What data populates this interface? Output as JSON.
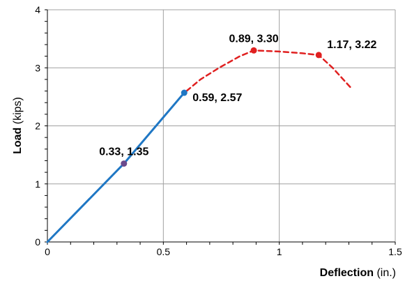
{
  "chart_data": {
    "type": "line",
    "xlabel": {
      "bold": "Deflection",
      "unit": " (in.)"
    },
    "ylabel": {
      "bold": "Load",
      "unit": " (kips)"
    },
    "xlim": [
      0,
      1.5
    ],
    "ylim": [
      0,
      4
    ],
    "x_ticks": [
      "0",
      "0.5",
      "1",
      "1.5"
    ],
    "y_ticks": [
      "0",
      "1",
      "2",
      "3",
      "4"
    ],
    "grid": true,
    "series": [
      {
        "style": "solid",
        "color": "#1f77c4",
        "points": [
          [
            0,
            0
          ],
          [
            0.33,
            1.35
          ],
          [
            0.59,
            2.57
          ]
        ]
      },
      {
        "style": "dashed",
        "color": "#e02020",
        "points": [
          [
            0.6,
            2.6
          ],
          [
            0.66,
            2.8
          ],
          [
            0.74,
            3.0
          ],
          [
            0.83,
            3.2
          ],
          [
            0.89,
            3.3
          ],
          [
            1.0,
            3.28
          ],
          [
            1.1,
            3.25
          ],
          [
            1.17,
            3.22
          ],
          [
            1.23,
            3.0
          ],
          [
            1.31,
            2.65
          ]
        ]
      }
    ],
    "markers": [
      {
        "x": 0.33,
        "y": 1.35,
        "color": "#6b4a8c"
      },
      {
        "x": 0.59,
        "y": 2.57,
        "color": "#1f77c4"
      },
      {
        "x": 0.89,
        "y": 3.3,
        "color": "#e02020"
      },
      {
        "x": 1.17,
        "y": 3.22,
        "color": "#e02020"
      }
    ],
    "annotations": [
      {
        "text": "0.33, 1.35",
        "x": 0.33,
        "y": 1.35,
        "anchor": "above"
      },
      {
        "text": "0.59, 2.57",
        "x": 0.59,
        "y": 2.57,
        "anchor": "right"
      },
      {
        "text": "0.89, 3.30",
        "x": 0.89,
        "y": 3.3,
        "anchor": "above"
      },
      {
        "text": "1.17, 3.22",
        "x": 1.17,
        "y": 3.22,
        "anchor": "above-right"
      }
    ]
  }
}
